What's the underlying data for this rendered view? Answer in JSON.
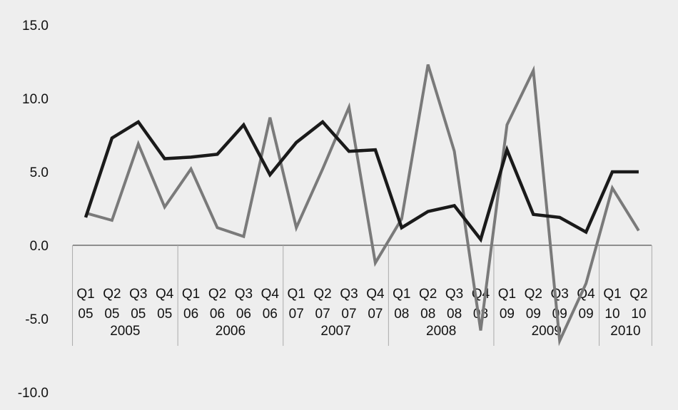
{
  "chart_data": {
    "type": "line",
    "title": "",
    "xlabel": "",
    "ylabel": "",
    "ylim": [
      -10,
      15
    ],
    "yticks": [
      "15.0",
      "10.0",
      "5.0",
      "0.0",
      "-5.0",
      "-10.0"
    ],
    "grid": false,
    "legend": "none",
    "categories": [
      {
        "q": "Q1",
        "y": "05"
      },
      {
        "q": "Q2",
        "y": "05"
      },
      {
        "q": "Q3",
        "y": "05"
      },
      {
        "q": "Q4",
        "y": "05"
      },
      {
        "q": "Q1",
        "y": "06"
      },
      {
        "q": "Q2",
        "y": "06"
      },
      {
        "q": "Q3",
        "y": "06"
      },
      {
        "q": "Q4",
        "y": "06"
      },
      {
        "q": "Q1",
        "y": "07"
      },
      {
        "q": "Q2",
        "y": "07"
      },
      {
        "q": "Q3",
        "y": "07"
      },
      {
        "q": "Q4",
        "y": "07"
      },
      {
        "q": "Q1",
        "y": "08"
      },
      {
        "q": "Q2",
        "y": "08"
      },
      {
        "q": "Q3",
        "y": "08"
      },
      {
        "q": "Q4",
        "y": "08"
      },
      {
        "q": "Q1",
        "y": "09"
      },
      {
        "q": "Q2",
        "y": "09"
      },
      {
        "q": "Q3",
        "y": "09"
      },
      {
        "q": "Q4",
        "y": "09"
      },
      {
        "q": "Q1",
        "y": "10"
      },
      {
        "q": "Q2",
        "y": "10"
      }
    ],
    "years": [
      "2005",
      "2006",
      "2007",
      "2008",
      "2009",
      "2010"
    ],
    "series": [
      {
        "color": "#1a1a1a",
        "values": [
          1.9,
          7.3,
          8.4,
          5.9,
          6.0,
          6.2,
          8.2,
          4.8,
          7.0,
          8.4,
          6.4,
          6.5,
          1.2,
          2.3,
          2.7,
          0.4,
          6.5,
          2.1,
          1.9,
          0.9,
          5.0,
          5.0
        ]
      },
      {
        "color": "#7a7a7a",
        "values": [
          2.2,
          1.7,
          6.9,
          2.6,
          5.2,
          1.2,
          0.6,
          8.7,
          1.2,
          5.2,
          9.4,
          -1.2,
          1.8,
          12.3,
          6.4,
          -5.8,
          8.2,
          11.9,
          -6.5,
          -2.6,
          3.9,
          1.0
        ]
      }
    ]
  }
}
